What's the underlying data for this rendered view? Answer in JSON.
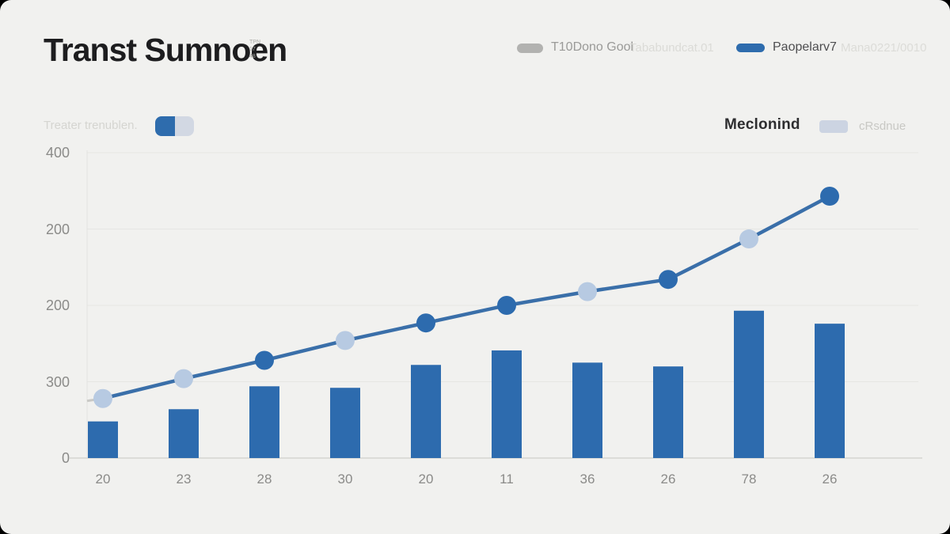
{
  "header": {
    "title": "Transt Sumnoen",
    "title_marks": "TPN\n17\n48"
  },
  "legend_top": {
    "series1_label": "T10Dono Gool",
    "series1_faint": "Tababundcat.01",
    "series2_label": "Paopelarv7",
    "series2_faint": "Mana0221/0010",
    "series1_swatch_color": "#b2b2b0",
    "series2_swatch_color": "#2e6cad"
  },
  "controls_row": {
    "left_faint_label": "Treater trenublen.",
    "toggle_state": "left-on",
    "right_label": "Meclonind",
    "right_swatch_color": "#ccd4e2",
    "right_faint_label": "cRsdnue"
  },
  "colors": {
    "background": "#f1f1ef",
    "bar": "#2d6bae",
    "line": "#3a6fa9",
    "dot_light": "#b7cae2",
    "dot_dark": "#2d6bae",
    "gridline": "#e6e6e3",
    "baseline": "#dcdcd8",
    "axis_text": "#8b8b89"
  },
  "chart_data": {
    "type": "combo",
    "title": "Transt Sumnoen",
    "categories": [
      "20",
      "23",
      "28",
      "30",
      "20",
      "11",
      "36",
      "26",
      "78",
      "26"
    ],
    "series": [
      {
        "name": "T10Dono Gool (bars)",
        "type": "bar",
        "color": "#2d6bae",
        "values": [
          48,
          64,
          94,
          92,
          122,
          141,
          125,
          120,
          193,
          176
        ]
      },
      {
        "name": "Paopelarv7 (line)",
        "type": "line",
        "color": "#3a6fa9",
        "values": [
          78,
          104,
          128,
          154,
          177,
          200,
          218,
          234,
          287,
          343
        ],
        "point_colors": [
          "light",
          "light",
          "dark",
          "light",
          "dark",
          "dark",
          "light",
          "dark",
          "light",
          "dark"
        ],
        "point_color_map": {
          "light": "#b7cae2",
          "dark": "#2d6bae"
        }
      }
    ],
    "ylim": [
      0,
      400
    ],
    "ytick_labels": [
      "400",
      "200",
      "200",
      "300",
      "0"
    ],
    "xlabel": "",
    "ylabel": "",
    "grid": "horizontal-faint",
    "legend_position": "top-right"
  }
}
